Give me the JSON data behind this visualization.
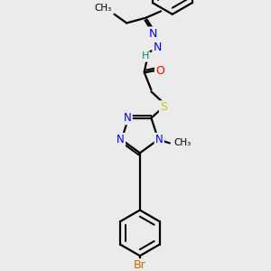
{
  "background_color": "#ebebeb",
  "atom_colors": {
    "N": "#0000ff",
    "O": "#ff0000",
    "S": "#cccc00",
    "Br": "#cc6600",
    "C": "#000000",
    "H": "#008080"
  },
  "bond_color": "#000000",
  "figsize": [
    3.0,
    3.0
  ],
  "dpi": 100
}
